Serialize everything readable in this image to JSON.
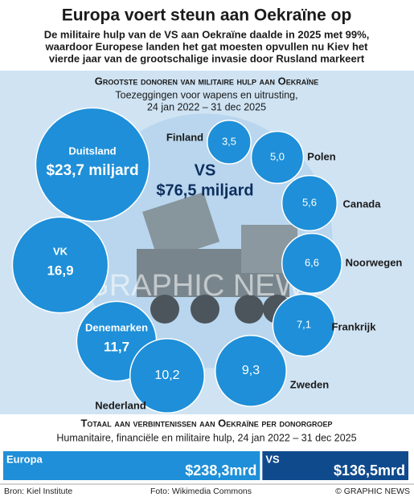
{
  "header": {
    "title": "Europa voert steun aan Oekraïne op",
    "subtitle": [
      "De militaire hulp van de VS aan Oekraïne daalde in 2025 met 99%,",
      "waardoor Europese landen het gat moesten opvullen nu Kiev het",
      "vierde jaar van de grootschalige invasie door Rusland markeert"
    ]
  },
  "chart_data": [
    {
      "type": "bubble",
      "title": "Grootste donoren van militaire hulp aan Oekraïne",
      "subtitle": [
        "Toezeggingen voor wapens en uitrusting,",
        "24 jan 2022 – 31 dec 2025"
      ],
      "categories": [
        "VS",
        "Duitsland",
        "VK",
        "Denemarken",
        "Nederland",
        "Zweden",
        "Frankrijk",
        "Noorwegen",
        "Canada",
        "Polen",
        "Finland"
      ],
      "values": [
        76.5,
        23.7,
        16.9,
        11.7,
        10.2,
        9.3,
        7.1,
        6.6,
        5.6,
        5.0,
        3.5
      ],
      "value_labels": [
        "$76,5 miljard",
        "$23,7 miljard",
        "16,9",
        "11,7",
        "10,2",
        "9,3",
        "7,1",
        "6,6",
        "5,6",
        "5,0",
        "3,5"
      ],
      "color": "#1e8fd8",
      "background_color": "#cfe3f3"
    },
    {
      "type": "bar",
      "title": "Totaal aan verbintenissen aan Oekraïne per donorgroep",
      "subtitle": [
        "Humanitaire, financiële en militaire hulp, 24 jan 2022 – 31 dec 2025"
      ],
      "categories": [
        "Europa",
        "VS"
      ],
      "values": [
        238.3,
        136.5
      ],
      "value_labels": [
        "$238,3mrd",
        "$136,5mrd"
      ],
      "colors": [
        "#1e8fd8",
        "#0f4a8c"
      ]
    }
  ],
  "watermark": "GRAPHIC NEWS",
  "footer": {
    "source": "Bron: Kiel Institute",
    "photo": "Foto: Wikimedia Commons",
    "credit": "© GRAPHIC NEWS"
  }
}
